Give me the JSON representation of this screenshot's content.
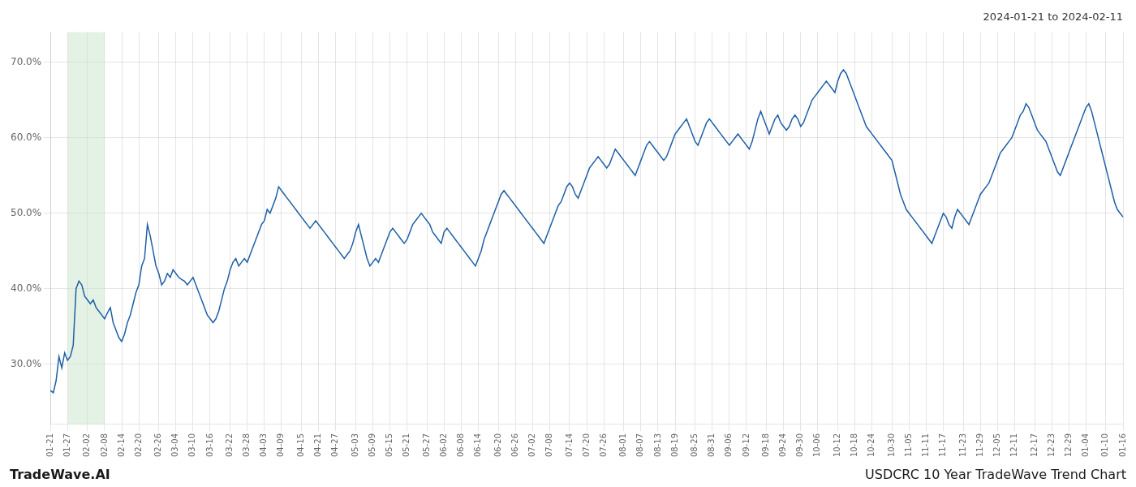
{
  "chart_data": {
    "type": "line",
    "title": "2024-01-21 to 2024-02-11",
    "annotations": [
      "TradeWave.AI",
      "USDCRC 10 Year TradeWave Trend Chart"
    ],
    "color": "#1f5fa6",
    "highlight": {
      "start": "01-27",
      "end": "02-08",
      "color": "#c8e6c9"
    },
    "grid": true,
    "ylim": [
      22,
      74
    ],
    "yticks": [
      {
        "value": 30.0,
        "label": "30.0%"
      },
      {
        "value": 40.0,
        "label": "40.0%"
      },
      {
        "value": 50.0,
        "label": "50.0%"
      },
      {
        "value": 60.0,
        "label": "60.0%"
      },
      {
        "value": 70.0,
        "label": "70.0%"
      }
    ],
    "categories": [
      "01-21",
      null,
      null,
      null,
      null,
      null,
      "01-27",
      null,
      null,
      null,
      null,
      null,
      null,
      "02-02",
      null,
      null,
      null,
      null,
      null,
      "02-08",
      null,
      null,
      null,
      null,
      null,
      "02-14",
      null,
      null,
      null,
      null,
      null,
      "02-20",
      null,
      null,
      null,
      null,
      null,
      null,
      "02-26",
      null,
      null,
      null,
      null,
      null,
      "03-04",
      null,
      null,
      null,
      null,
      null,
      "03-10",
      null,
      null,
      null,
      null,
      null,
      "03-16",
      null,
      null,
      null,
      null,
      null,
      null,
      "03-22",
      null,
      null,
      null,
      null,
      null,
      "03-28",
      null,
      null,
      null,
      null,
      null,
      "04-03",
      null,
      null,
      null,
      null,
      null,
      "04-09",
      null,
      null,
      null,
      null,
      null,
      null,
      "04-15",
      null,
      null,
      null,
      null,
      null,
      "04-21",
      null,
      null,
      null,
      null,
      null,
      "04-27",
      null,
      null,
      null,
      null,
      null,
      null,
      "05-03",
      null,
      null,
      null,
      null,
      null,
      "05-09",
      null,
      null,
      null,
      null,
      null,
      "05-15",
      null,
      null,
      null,
      null,
      null,
      "05-21",
      null,
      null,
      null,
      null,
      null,
      null,
      "05-27",
      null,
      null,
      null,
      null,
      null,
      "06-02",
      null,
      null,
      null,
      null,
      null,
      "06-08",
      null,
      null,
      null,
      null,
      null,
      "06-14",
      null,
      null,
      null,
      null,
      null,
      null,
      "06-20",
      null,
      null,
      null,
      null,
      null,
      "06-26",
      null,
      null,
      null,
      null,
      null,
      "07-02",
      null,
      null,
      null,
      null,
      null,
      "07-08",
      null,
      null,
      null,
      null,
      null,
      null,
      "07-14",
      null,
      null,
      null,
      null,
      null,
      "07-20",
      null,
      null,
      null,
      null,
      null,
      "07-26",
      null,
      null,
      null,
      null,
      null,
      null,
      "08-01",
      null,
      null,
      null,
      null,
      null,
      "08-07",
      null,
      null,
      null,
      null,
      null,
      "08-13",
      null,
      null,
      null,
      null,
      null,
      "08-19",
      null,
      null,
      null,
      null,
      null,
      null,
      "08-25",
      null,
      null,
      null,
      null,
      null,
      "08-31",
      null,
      null,
      null,
      null,
      null,
      "09-06",
      null,
      null,
      null,
      null,
      null,
      "09-12",
      null,
      null,
      null,
      null,
      null,
      null,
      "09-18",
      null,
      null,
      null,
      null,
      null,
      "09-24",
      null,
      null,
      null,
      null,
      null,
      "09-30",
      null,
      null,
      null,
      null,
      null,
      "10-06",
      null,
      null,
      null,
      null,
      null,
      null,
      "10-12",
      null,
      null,
      null,
      null,
      null,
      "10-18",
      null,
      null,
      null,
      null,
      null,
      "10-24",
      null,
      null,
      null,
      null,
      null,
      null,
      "10-30",
      null,
      null,
      null,
      null,
      null,
      "11-05",
      null,
      null,
      null,
      null,
      null,
      "11-11",
      null,
      null,
      null,
      null,
      null,
      "11-17",
      null,
      null,
      null,
      null,
      null,
      null,
      "11-23",
      null,
      null,
      null,
      null,
      null,
      "11-29",
      null,
      null,
      null,
      null,
      null,
      "12-05",
      null,
      null,
      null,
      null,
      null,
      "12-11",
      null,
      null,
      null,
      null,
      null,
      null,
      "12-17",
      null,
      null,
      null,
      null,
      null,
      "12-23",
      null,
      null,
      null,
      null,
      null,
      "12-29",
      null,
      null,
      null,
      null,
      null,
      "01-04",
      null,
      null,
      null,
      null,
      null,
      null,
      "01-10",
      null,
      null,
      null,
      null,
      null,
      "01-16"
    ],
    "values": [
      26.5,
      26.2,
      27.8,
      31.0,
      29.5,
      31.5,
      30.5,
      31.0,
      32.5,
      40.0,
      41.0,
      40.5,
      39.0,
      38.5,
      38.0,
      38.5,
      37.5,
      37.0,
      36.5,
      36.0,
      36.8,
      37.5,
      35.5,
      34.5,
      33.5,
      33.0,
      34.0,
      35.5,
      36.5,
      38.0,
      39.5,
      40.5,
      43.0,
      44.0,
      48.5,
      47.0,
      45.0,
      43.0,
      42.0,
      40.5,
      41.0,
      42.0,
      41.5,
      42.5,
      42.0,
      41.5,
      41.2,
      41.0,
      40.5,
      41.0,
      41.5,
      40.5,
      39.5,
      38.5,
      37.5,
      36.5,
      36.0,
      35.5,
      36.0,
      37.0,
      38.5,
      40.0,
      41.0,
      42.5,
      43.5,
      44.0,
      43.0,
      43.5,
      44.0,
      43.5,
      44.5,
      45.5,
      46.5,
      47.5,
      48.5,
      49.0,
      50.5,
      50.0,
      51.0,
      52.0,
      53.5,
      53.0,
      52.5,
      52.0,
      51.5,
      51.0,
      50.5,
      50.0,
      49.5,
      49.0,
      48.5,
      48.0,
      48.5,
      49.0,
      48.5,
      48.0,
      47.5,
      47.0,
      46.5,
      46.0,
      45.5,
      45.0,
      44.5,
      44.0,
      44.5,
      45.0,
      46.0,
      47.5,
      48.5,
      47.0,
      45.5,
      44.0,
      43.0,
      43.5,
      44.0,
      43.5,
      44.5,
      45.5,
      46.5,
      47.5,
      48.0,
      47.5,
      47.0,
      46.5,
      46.0,
      46.5,
      47.5,
      48.5,
      49.0,
      49.5,
      50.0,
      49.5,
      49.0,
      48.5,
      47.5,
      47.0,
      46.5,
      46.0,
      47.5,
      48.0,
      47.5,
      47.0,
      46.5,
      46.0,
      45.5,
      45.0,
      44.5,
      44.0,
      43.5,
      43.0,
      44.0,
      45.0,
      46.5,
      47.5,
      48.5,
      49.5,
      50.5,
      51.5,
      52.5,
      53.0,
      52.5,
      52.0,
      51.5,
      51.0,
      50.5,
      50.0,
      49.5,
      49.0,
      48.5,
      48.0,
      47.5,
      47.0,
      46.5,
      46.0,
      47.0,
      48.0,
      49.0,
      50.0,
      51.0,
      51.5,
      52.5,
      53.5,
      54.0,
      53.5,
      52.5,
      52.0,
      53.0,
      54.0,
      55.0,
      56.0,
      56.5,
      57.0,
      57.5,
      57.0,
      56.5,
      56.0,
      56.5,
      57.5,
      58.5,
      58.0,
      57.5,
      57.0,
      56.5,
      56.0,
      55.5,
      55.0,
      56.0,
      57.0,
      58.0,
      59.0,
      59.5,
      59.0,
      58.5,
      58.0,
      57.5,
      57.0,
      57.5,
      58.5,
      59.5,
      60.5,
      61.0,
      61.5,
      62.0,
      62.5,
      61.5,
      60.5,
      59.5,
      59.0,
      60.0,
      61.0,
      62.0,
      62.5,
      62.0,
      61.5,
      61.0,
      60.5,
      60.0,
      59.5,
      59.0,
      59.5,
      60.0,
      60.5,
      60.0,
      59.5,
      59.0,
      58.5,
      59.5,
      61.0,
      62.5,
      63.5,
      62.5,
      61.5,
      60.5,
      61.5,
      62.5,
      63.0,
      62.0,
      61.5,
      61.0,
      61.5,
      62.5,
      63.0,
      62.5,
      61.5,
      62.0,
      63.0,
      64.0,
      65.0,
      65.5,
      66.0,
      66.5,
      67.0,
      67.5,
      67.0,
      66.5,
      66.0,
      67.5,
      68.5,
      69.0,
      68.5,
      67.5,
      66.5,
      65.5,
      64.5,
      63.5,
      62.5,
      61.5,
      61.0,
      60.5,
      60.0,
      59.5,
      59.0,
      58.5,
      58.0,
      57.5,
      57.0,
      55.5,
      54.0,
      52.5,
      51.5,
      50.5,
      50.0,
      49.5,
      49.0,
      48.5,
      48.0,
      47.5,
      47.0,
      46.5,
      46.0,
      47.0,
      48.0,
      49.0,
      50.0,
      49.5,
      48.5,
      48.0,
      49.5,
      50.5,
      50.0,
      49.5,
      49.0,
      48.5,
      49.5,
      50.5,
      51.5,
      52.5,
      53.0,
      53.5,
      54.0,
      55.0,
      56.0,
      57.0,
      58.0,
      58.5,
      59.0,
      59.5,
      60.0,
      61.0,
      62.0,
      63.0,
      63.5,
      64.5,
      64.0,
      63.0,
      62.0,
      61.0,
      60.5,
      60.0,
      59.5,
      58.5,
      57.5,
      56.5,
      55.5,
      55.0,
      56.0,
      57.0,
      58.0,
      59.0,
      60.0,
      61.0,
      62.0,
      63.0,
      64.0,
      64.5,
      63.5,
      62.0,
      60.5,
      59.0,
      57.5,
      56.0,
      54.5,
      53.0,
      51.5,
      50.5,
      50.0,
      49.5
    ]
  }
}
